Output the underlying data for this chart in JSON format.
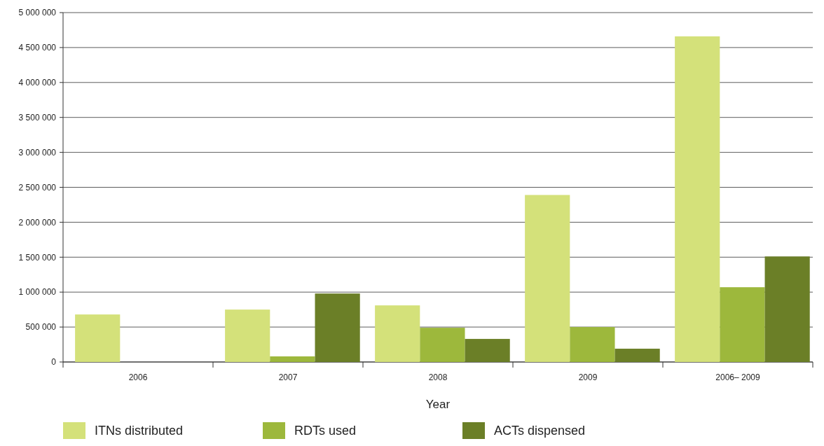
{
  "chart_data": {
    "type": "bar",
    "xlabel": "Year",
    "categories": [
      "2006",
      "2007",
      "2008",
      "2009",
      "2006– 2009"
    ],
    "series": [
      {
        "name": "ITNs distributed",
        "color": "#d4e17a",
        "values": [
          680000,
          750000,
          810000,
          2390000,
          4660000
        ]
      },
      {
        "name": "RDTs used",
        "color": "#9db83c",
        "values": [
          null,
          80000,
          490000,
          500000,
          1070000
        ]
      },
      {
        "name": "ACTs dispensed",
        "color": "#6b7f27",
        "values": [
          null,
          980000,
          330000,
          190000,
          1510000
        ]
      }
    ],
    "ylim": [
      0,
      5000000
    ],
    "yticks": [
      {
        "value": 0,
        "label": "0"
      },
      {
        "value": 500000,
        "label": "500 000"
      },
      {
        "value": 1000000,
        "label": "1 000 000"
      },
      {
        "value": 1500000,
        "label": "1 500 000"
      },
      {
        "value": 2000000,
        "label": "2 000 000"
      },
      {
        "value": 2500000,
        "label": "2 500 000"
      },
      {
        "value": 3000000,
        "label": "3 000 000"
      },
      {
        "value": 3500000,
        "label": "3 500 000"
      },
      {
        "value": 4000000,
        "label": "4 000 000"
      },
      {
        "value": 4500000,
        "label": "4 500 000"
      },
      {
        "value": 5000000,
        "label": "5 000 000"
      }
    ],
    "grid": "y",
    "legend": "bottom"
  }
}
